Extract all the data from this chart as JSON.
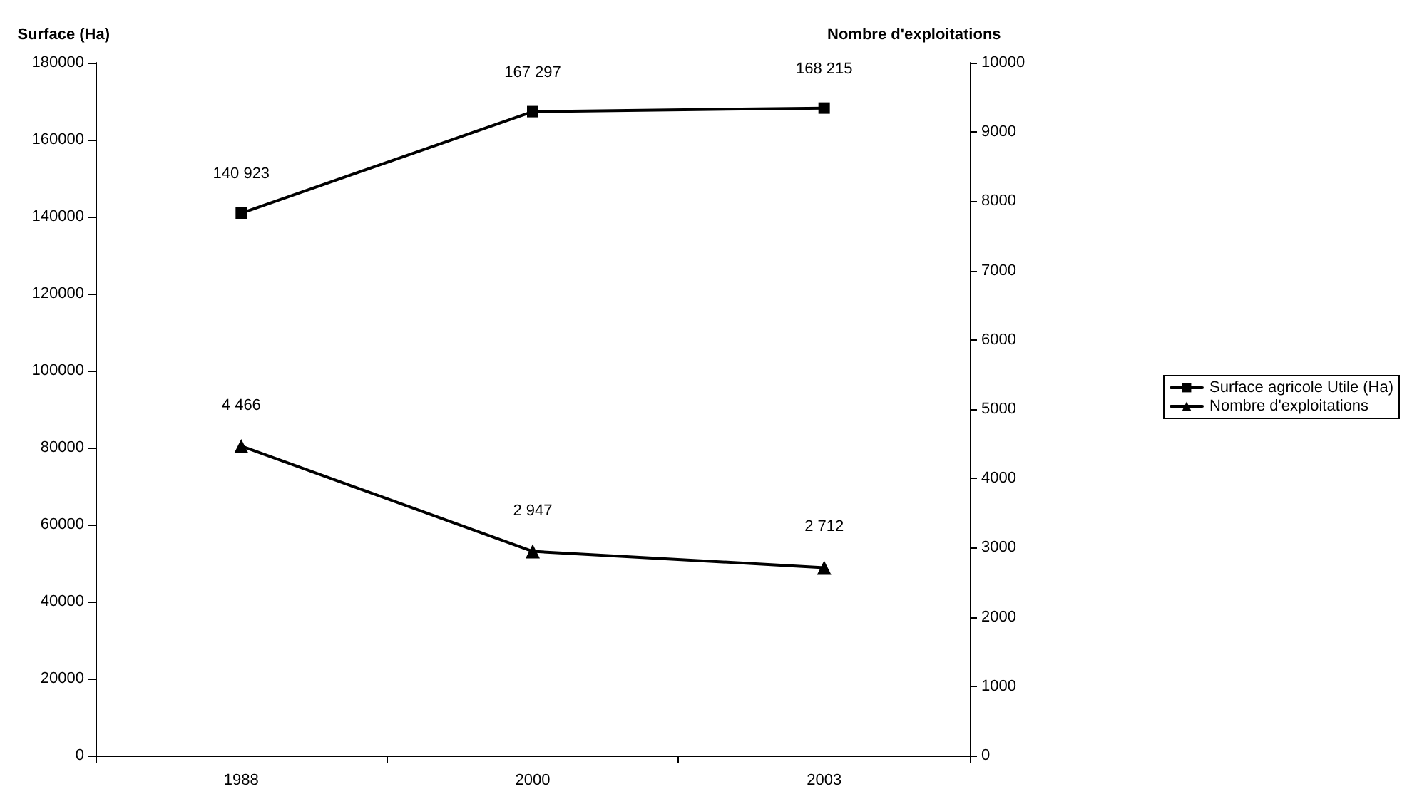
{
  "chart_data": {
    "type": "line",
    "ylabel": "Surface (Ha)",
    "y2label": "Nombre d'exploitations",
    "categories": [
      "1988",
      "2000",
      "2003"
    ],
    "series": [
      {
        "name": "Surface agricole Utile (Ha)",
        "color": "#000000",
        "values": [
          140923,
          167297,
          168215
        ],
        "value_labels": [
          "140 923",
          "167 297",
          "168 215"
        ],
        "marker": "square"
      },
      {
        "name": "Nombre d'exploitations",
        "color": "#000000",
        "values": [
          4466,
          2947,
          2712
        ],
        "value_labels": [
          "4 466",
          "2 947",
          "2 712"
        ],
        "marker": "triangle",
        "axis": "y2"
      }
    ],
    "ylim": [
      0,
      180000
    ],
    "yticks": [
      0,
      20000,
      40000,
      60000,
      80000,
      100000,
      120000,
      140000,
      160000,
      180000
    ],
    "y2lim": [
      0,
      10000
    ],
    "y2ticks": [
      0,
      1000,
      2000,
      3000,
      4000,
      5000,
      6000,
      7000,
      8000,
      9000,
      10000
    ],
    "grid": false,
    "legend": "right",
    "line_style": "solid"
  }
}
